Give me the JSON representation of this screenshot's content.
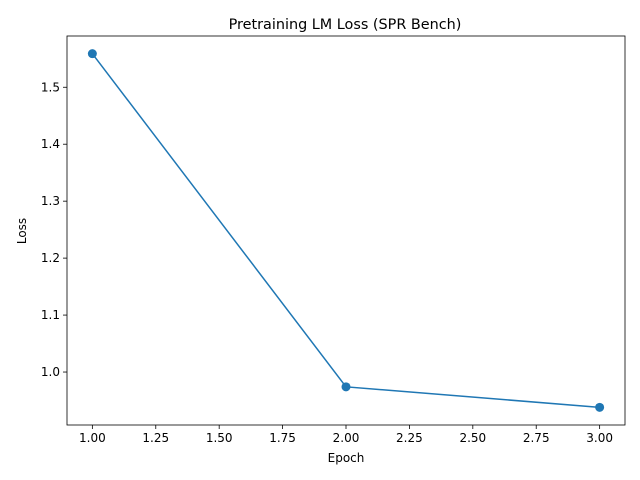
{
  "chart_data": {
    "type": "line",
    "title": "Pretraining LM Loss (SPR Bench)",
    "xlabel": "Epoch",
    "ylabel": "Loss",
    "x": [
      1.0,
      2.0,
      3.0
    ],
    "series": [
      {
        "values": [
          1.559,
          0.974,
          0.938
        ],
        "color": "#1f77b4",
        "marker": "circle"
      }
    ],
    "xlim": [
      0.9,
      3.1
    ],
    "ylim": [
      0.907,
      1.59
    ],
    "xticks": [
      "1.00",
      "1.25",
      "1.50",
      "1.75",
      "2.00",
      "2.25",
      "2.50",
      "2.75",
      "3.00"
    ],
    "yticks": [
      "1.0",
      "1.1",
      "1.2",
      "1.3",
      "1.4",
      "1.5"
    ],
    "grid": false,
    "legend": "none"
  }
}
